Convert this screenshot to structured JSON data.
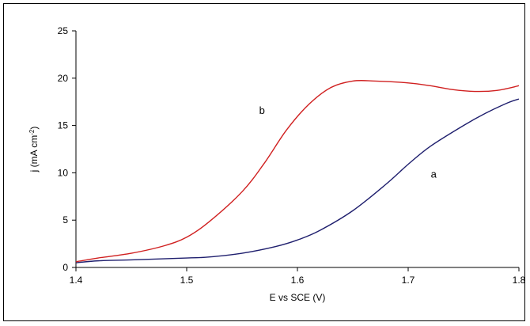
{
  "chart_data": {
    "type": "line",
    "title": "",
    "xlabel": "E vs SCE (V)",
    "ylabel_main": "j (mA cm",
    "ylabel_sup": "-2",
    "ylabel_close": ")",
    "xlim": [
      1.4,
      1.8
    ],
    "ylim": [
      0,
      25
    ],
    "xticks": [
      1.4,
      1.5,
      1.6,
      1.7,
      1.8
    ],
    "xtick_labels": [
      "1.4",
      "1.5",
      "1.6",
      "1.7",
      "1.8"
    ],
    "yticks": [
      0,
      5,
      10,
      15,
      20,
      25
    ],
    "ytick_labels": [
      "0",
      "5",
      "10",
      "15",
      "20",
      "25"
    ],
    "grid": false,
    "series": [
      {
        "name": "a",
        "color": "#1f1f6e",
        "x": [
          1.4,
          1.42,
          1.45,
          1.5,
          1.52,
          1.55,
          1.58,
          1.6,
          1.62,
          1.65,
          1.68,
          1.7,
          1.72,
          1.75,
          1.77,
          1.79,
          1.8
        ],
        "y": [
          0.5,
          0.7,
          0.8,
          1.0,
          1.1,
          1.5,
          2.2,
          2.9,
          3.9,
          6.0,
          8.8,
          10.9,
          12.8,
          15.0,
          16.3,
          17.4,
          17.8
        ]
      },
      {
        "name": "b",
        "color": "#d02020",
        "x": [
          1.4,
          1.42,
          1.45,
          1.48,
          1.5,
          1.52,
          1.55,
          1.57,
          1.59,
          1.61,
          1.63,
          1.65,
          1.67,
          1.7,
          1.72,
          1.74,
          1.76,
          1.78,
          1.8
        ],
        "y": [
          0.6,
          1.0,
          1.5,
          2.3,
          3.2,
          4.8,
          8.0,
          11.0,
          14.5,
          17.2,
          19.0,
          19.7,
          19.7,
          19.5,
          19.2,
          18.8,
          18.6,
          18.7,
          19.2
        ]
      }
    ],
    "annotations": [
      {
        "text": "a",
        "x": 1.723,
        "y": 9.5
      },
      {
        "text": "b",
        "x": 1.568,
        "y": 16.2
      }
    ]
  }
}
